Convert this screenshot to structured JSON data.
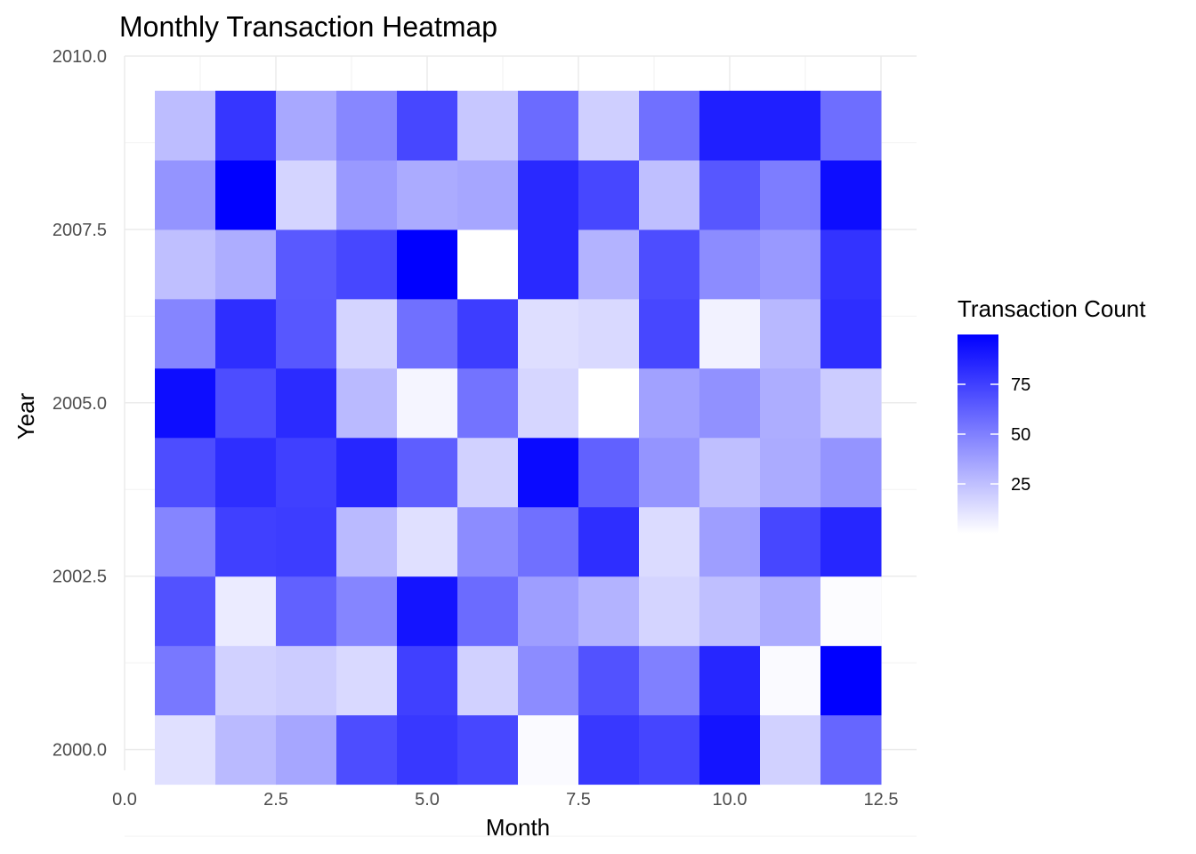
{
  "chart_data": {
    "type": "heatmap",
    "title": "Monthly Transaction Heatmap",
    "xlabel": "Month",
    "ylabel": "Year",
    "xlim": [
      0.0,
      12.5
    ],
    "ylim": [
      1999.7,
      2010.0
    ],
    "x_ticks": [
      "0.0",
      "2.5",
      "5.0",
      "7.5",
      "10.0",
      "12.5"
    ],
    "y_ticks": [
      "2000.0",
      "2002.5",
      "2005.0",
      "2007.5",
      "2010.0"
    ],
    "months": [
      1,
      2,
      3,
      4,
      5,
      6,
      7,
      8,
      9,
      10,
      11,
      12
    ],
    "years": [
      2000,
      2001,
      2002,
      2003,
      2004,
      2005,
      2006,
      2007,
      2008,
      2009
    ],
    "values": [
      [
        12,
        27,
        35,
        70,
        78,
        72,
        2,
        78,
        73,
        92,
        18,
        60
      ],
      [
        53,
        18,
        20,
        15,
        75,
        18,
        45,
        68,
        50,
        85,
        2,
        100
      ],
      [
        68,
        8,
        62,
        48,
        92,
        58,
        38,
        30,
        17,
        25,
        33,
        1
      ],
      [
        48,
        75,
        76,
        27,
        12,
        45,
        56,
        82,
        14,
        38,
        72,
        85
      ],
      [
        70,
        82,
        75,
        85,
        63,
        18,
        96,
        62,
        42,
        25,
        33,
        42
      ],
      [
        95,
        70,
        83,
        27,
        4,
        55,
        16,
        0,
        37,
        43,
        32,
        20
      ],
      [
        48,
        82,
        66,
        17,
        56,
        76,
        13,
        15,
        72,
        5,
        28,
        82
      ],
      [
        25,
        32,
        65,
        72,
        100,
        0,
        84,
        30,
        70,
        45,
        40,
        80
      ],
      [
        42,
        100,
        17,
        40,
        33,
        35,
        84,
        72,
        25,
        66,
        51,
        95
      ],
      [
        26,
        79,
        34,
        47,
        72,
        22,
        58,
        19,
        56,
        88,
        88,
        57
      ]
    ],
    "legend": {
      "title": "Transaction Count",
      "breaks": [
        "25",
        "50",
        "75"
      ],
      "min": 0,
      "max": 100,
      "low_color": "#ffffff",
      "high_color": "#0000ff"
    }
  }
}
